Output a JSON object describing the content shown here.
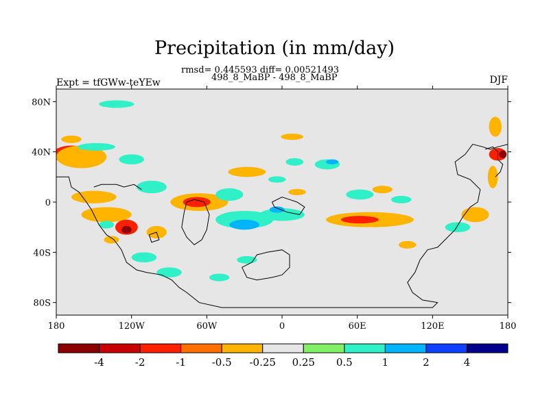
{
  "chart_data": {
    "type": "heatmap",
    "title": "Precipitation (in mm/day)",
    "stats_line": "rmsd= 0.445593 diff= 0.00521493",
    "case_line": "498_8_MaBP - 498_8_MaBP",
    "left_label": "Expt = tfGWw-teYEw",
    "right_label": "DJF",
    "xlim": [
      -180,
      180
    ],
    "ylim": [
      -90,
      90
    ],
    "x_ticks": [
      {
        "value": -180,
        "label": "180"
      },
      {
        "value": -120,
        "label": "120W"
      },
      {
        "value": -60,
        "label": "60W"
      },
      {
        "value": 0,
        "label": "0"
      },
      {
        "value": 60,
        "label": "60E"
      },
      {
        "value": 120,
        "label": "120E"
      },
      {
        "value": 180,
        "label": "180"
      }
    ],
    "y_ticks": [
      {
        "value": 80,
        "label": "80N"
      },
      {
        "value": 40,
        "label": "40N"
      },
      {
        "value": 0,
        "label": "0"
      },
      {
        "value": -40,
        "label": "40S"
      },
      {
        "value": -80,
        "label": "80S"
      }
    ],
    "colorbar": {
      "colors": [
        "#8b0000",
        "#c80000",
        "#ff2000",
        "#ff7000",
        "#ffb400",
        "#e6e6e6",
        "#82f065",
        "#30f0c8",
        "#00b4ff",
        "#1040ff",
        "#00008c"
      ],
      "labels": [
        "-4",
        "-2",
        "-1",
        "-0.5",
        "-0.25",
        "0.25",
        "0.5",
        "1",
        "2",
        "4"
      ]
    },
    "features": [
      {
        "lon": -170,
        "lat": 38,
        "w": 22,
        "h": 9,
        "value": -5
      },
      {
        "lon": -168,
        "lat": 38,
        "w": 30,
        "h": 14,
        "value": -1.5
      },
      {
        "lon": -160,
        "lat": 36,
        "w": 40,
        "h": 18,
        "value": -0.4
      },
      {
        "lon": -148,
        "lat": 44,
        "w": 30,
        "h": 6,
        "value": 0.6
      },
      {
        "lon": -168,
        "lat": 50,
        "w": 16,
        "h": 6,
        "value": -0.4
      },
      {
        "lon": -120,
        "lat": 34,
        "w": 20,
        "h": 8,
        "value": 0.6
      },
      {
        "lon": -104,
        "lat": 12,
        "w": 24,
        "h": 10,
        "value": 0.6
      },
      {
        "lon": -150,
        "lat": 4,
        "w": 36,
        "h": 10,
        "value": -0.4
      },
      {
        "lon": -140,
        "lat": -10,
        "w": 40,
        "h": 12,
        "value": -0.4
      },
      {
        "lon": -124,
        "lat": -20,
        "w": 18,
        "h": 12,
        "value": -1.5
      },
      {
        "lon": -124,
        "lat": -22,
        "w": 8,
        "h": 6,
        "value": -5
      },
      {
        "lon": -140,
        "lat": -18,
        "w": 12,
        "h": 6,
        "value": 0.6
      },
      {
        "lon": -136,
        "lat": -30,
        "w": 12,
        "h": 6,
        "value": -0.4
      },
      {
        "lon": -100,
        "lat": -24,
        "w": 16,
        "h": 10,
        "value": -0.4
      },
      {
        "lon": -110,
        "lat": -44,
        "w": 20,
        "h": 8,
        "value": 0.6
      },
      {
        "lon": -90,
        "lat": -56,
        "w": 20,
        "h": 8,
        "value": 0.6
      },
      {
        "lon": -66,
        "lat": 0,
        "w": 46,
        "h": 14,
        "value": -0.4
      },
      {
        "lon": -68,
        "lat": 0,
        "w": 22,
        "h": 8,
        "value": -1.5
      },
      {
        "lon": -42,
        "lat": 6,
        "w": 22,
        "h": 10,
        "value": 0.6
      },
      {
        "lon": -28,
        "lat": 24,
        "w": 30,
        "h": 8,
        "value": -0.4
      },
      {
        "lon": -30,
        "lat": -14,
        "w": 46,
        "h": 14,
        "value": 0.6
      },
      {
        "lon": -30,
        "lat": -18,
        "w": 24,
        "h": 8,
        "value": 1.5
      },
      {
        "lon": 0,
        "lat": -10,
        "w": 36,
        "h": 10,
        "value": 0.6
      },
      {
        "lon": -4,
        "lat": -6,
        "w": 12,
        "h": 5,
        "value": 1.5
      },
      {
        "lon": 12,
        "lat": 8,
        "w": 14,
        "h": 5,
        "value": -0.4
      },
      {
        "lon": 36,
        "lat": 30,
        "w": 20,
        "h": 8,
        "value": 0.6
      },
      {
        "lon": 40,
        "lat": 32,
        "w": 10,
        "h": 4,
        "value": 1.5
      },
      {
        "lon": 10,
        "lat": 32,
        "w": 14,
        "h": 6,
        "value": 0.6
      },
      {
        "lon": 8,
        "lat": 52,
        "w": 18,
        "h": 5,
        "value": -0.4
      },
      {
        "lon": 62,
        "lat": 6,
        "w": 22,
        "h": 8,
        "value": 0.6
      },
      {
        "lon": 70,
        "lat": -14,
        "w": 70,
        "h": 12,
        "value": -0.4
      },
      {
        "lon": 62,
        "lat": -14,
        "w": 30,
        "h": 6,
        "value": -1.5
      },
      {
        "lon": 95,
        "lat": 2,
        "w": 16,
        "h": 6,
        "value": 0.6
      },
      {
        "lon": 100,
        "lat": -34,
        "w": 14,
        "h": 6,
        "value": -0.4
      },
      {
        "lon": 140,
        "lat": -20,
        "w": 20,
        "h": 8,
        "value": 0.6
      },
      {
        "lon": 154,
        "lat": -10,
        "w": 22,
        "h": 12,
        "value": -0.4
      },
      {
        "lon": 172,
        "lat": 38,
        "w": 14,
        "h": 10,
        "value": -1.5
      },
      {
        "lon": 176,
        "lat": 38,
        "w": 6,
        "h": 6,
        "value": -5
      },
      {
        "lon": 170,
        "lat": 60,
        "w": 10,
        "h": 16,
        "value": -0.4
      },
      {
        "lon": 168,
        "lat": 20,
        "w": 8,
        "h": 18,
        "value": -0.4
      },
      {
        "lon": -132,
        "lat": 78,
        "w": 28,
        "h": 6,
        "value": 0.6
      },
      {
        "lon": -50,
        "lat": -60,
        "w": 16,
        "h": 6,
        "value": 0.6
      },
      {
        "lon": -28,
        "lat": -46,
        "w": 16,
        "h": 6,
        "value": 0.6
      },
      {
        "lon": 80,
        "lat": 10,
        "w": 16,
        "h": 6,
        "value": -0.4
      },
      {
        "lon": -4,
        "lat": 18,
        "w": 14,
        "h": 5,
        "value": 0.6
      }
    ],
    "coastlines": [
      [
        [
          -180,
          20
        ],
        [
          -170,
          20
        ],
        [
          -168,
          12
        ],
        [
          -162,
          8
        ],
        [
          -156,
          0
        ],
        [
          -152,
          -6
        ],
        [
          -146,
          -18
        ],
        [
          -140,
          -26
        ],
        [
          -134,
          -30
        ],
        [
          -128,
          -38
        ],
        [
          -124,
          -48
        ],
        [
          -116,
          -54
        ],
        [
          -108,
          -56
        ],
        [
          -96,
          -58
        ],
        [
          -88,
          -62
        ],
        [
          -82,
          -68
        ],
        [
          -76,
          -72
        ],
        [
          -66,
          -80
        ],
        [
          -48,
          -84
        ],
        [
          -20,
          -84
        ],
        [
          20,
          -84
        ],
        [
          60,
          -84
        ],
        [
          90,
          -84
        ],
        [
          120,
          -84
        ],
        [
          124,
          -80
        ],
        [
          112,
          -78
        ],
        [
          104,
          -72
        ],
        [
          100,
          -64
        ],
        [
          106,
          -56
        ],
        [
          110,
          -46
        ],
        [
          116,
          -38
        ],
        [
          124,
          -36
        ],
        [
          130,
          -30
        ],
        [
          138,
          -22
        ],
        [
          144,
          -12
        ],
        [
          150,
          -4
        ],
        [
          156,
          0
        ],
        [
          158,
          10
        ],
        [
          150,
          18
        ],
        [
          140,
          22
        ],
        [
          138,
          32
        ],
        [
          146,
          38
        ],
        [
          152,
          46
        ],
        [
          160,
          44
        ],
        [
          166,
          42
        ],
        [
          172,
          44
        ],
        [
          180,
          46
        ]
      ],
      [
        [
          -150,
          12
        ],
        [
          -144,
          14
        ],
        [
          -132,
          14
        ],
        [
          -126,
          12
        ],
        [
          -118,
          14
        ],
        [
          -112,
          10
        ]
      ],
      [
        [
          -76,
          0
        ],
        [
          -70,
          2
        ],
        [
          -62,
          0
        ],
        [
          -58,
          -10
        ],
        [
          -60,
          -22
        ],
        [
          -64,
          -30
        ],
        [
          -70,
          -34
        ],
        [
          -76,
          -28
        ],
        [
          -80,
          -20
        ],
        [
          -78,
          -8
        ],
        [
          -76,
          0
        ]
      ],
      [
        [
          -106,
          -26
        ],
        [
          -100,
          -24
        ],
        [
          -98,
          -30
        ],
        [
          -104,
          -32
        ],
        [
          -106,
          -26
        ]
      ],
      [
        [
          -8,
          0
        ],
        [
          0,
          4
        ],
        [
          6,
          2
        ],
        [
          12,
          0
        ],
        [
          18,
          -4
        ],
        [
          14,
          -10
        ],
        [
          4,
          -8
        ],
        [
          -6,
          -4
        ],
        [
          -8,
          0
        ]
      ],
      [
        [
          -32,
          -52
        ],
        [
          -24,
          -48
        ],
        [
          -20,
          -42
        ],
        [
          -12,
          -40
        ],
        [
          0,
          -38
        ],
        [
          6,
          -42
        ],
        [
          6,
          -52
        ],
        [
          0,
          -58
        ],
        [
          -8,
          -60
        ],
        [
          -20,
          -62
        ],
        [
          -28,
          -60
        ],
        [
          -32,
          -52
        ]
      ],
      [
        [
          162,
          42
        ],
        [
          168,
          44
        ],
        [
          172,
          40
        ],
        [
          172,
          34
        ],
        [
          176,
          30
        ],
        [
          174,
          24
        ],
        [
          170,
          20
        ]
      ]
    ]
  }
}
